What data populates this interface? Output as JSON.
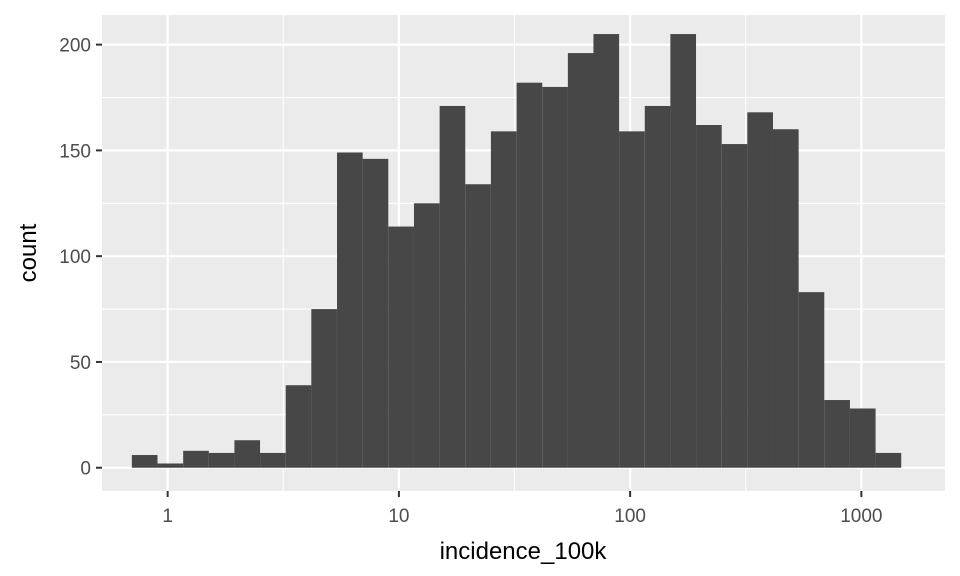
{
  "chart_data": {
    "type": "bar",
    "subtype": "histogram",
    "title": "",
    "xlabel": "incidence_100k",
    "ylabel": "count",
    "x_scale": "log10",
    "xlim": [
      0.52,
      2300
    ],
    "ylim": [
      -11,
      214
    ],
    "x_ticks": [
      1,
      10,
      100,
      1000
    ],
    "x_tick_labels": [
      "1",
      "10",
      "100",
      "1000"
    ],
    "x_minor_ticks": [
      0.316,
      3.16,
      31.6,
      316
    ],
    "y_ticks": [
      0,
      50,
      100,
      150,
      200
    ],
    "y_tick_labels": [
      "0",
      "50",
      "100",
      "150",
      "200"
    ],
    "y_minor_ticks": [
      25,
      75,
      125,
      175
    ],
    "grid": true,
    "legend": "none",
    "bar_color": "#474747",
    "panel_background": "#ebebeb",
    "grid_color": "#ffffff",
    "bin_log_width": 0.1109,
    "bins": [
      {
        "x_start": 0.7,
        "count": 6
      },
      {
        "x_start": 0.904,
        "count": 2
      },
      {
        "x_start": 1.167,
        "count": 8
      },
      {
        "x_start": 1.506,
        "count": 7
      },
      {
        "x_start": 1.944,
        "count": 13
      },
      {
        "x_start": 2.51,
        "count": 7
      },
      {
        "x_start": 3.24,
        "count": 39
      },
      {
        "x_start": 4.18,
        "count": 75
      },
      {
        "x_start": 5.4,
        "count": 149
      },
      {
        "x_start": 6.97,
        "count": 146
      },
      {
        "x_start": 9.0,
        "count": 114
      },
      {
        "x_start": 11.62,
        "count": 125
      },
      {
        "x_start": 15.0,
        "count": 171
      },
      {
        "x_start": 19.36,
        "count": 134
      },
      {
        "x_start": 25.0,
        "count": 159
      },
      {
        "x_start": 32.3,
        "count": 182
      },
      {
        "x_start": 41.7,
        "count": 180
      },
      {
        "x_start": 53.8,
        "count": 196
      },
      {
        "x_start": 69.4,
        "count": 205
      },
      {
        "x_start": 89.6,
        "count": 159
      },
      {
        "x_start": 115.7,
        "count": 171
      },
      {
        "x_start": 149.3,
        "count": 205
      },
      {
        "x_start": 192.8,
        "count": 162
      },
      {
        "x_start": 248.9,
        "count": 153
      },
      {
        "x_start": 321.3,
        "count": 168
      },
      {
        "x_start": 414.8,
        "count": 160
      },
      {
        "x_start": 535.5,
        "count": 83
      },
      {
        "x_start": 691.3,
        "count": 32
      },
      {
        "x_start": 892.5,
        "count": 28
      },
      {
        "x_start": 1152.2,
        "count": 7
      }
    ]
  }
}
